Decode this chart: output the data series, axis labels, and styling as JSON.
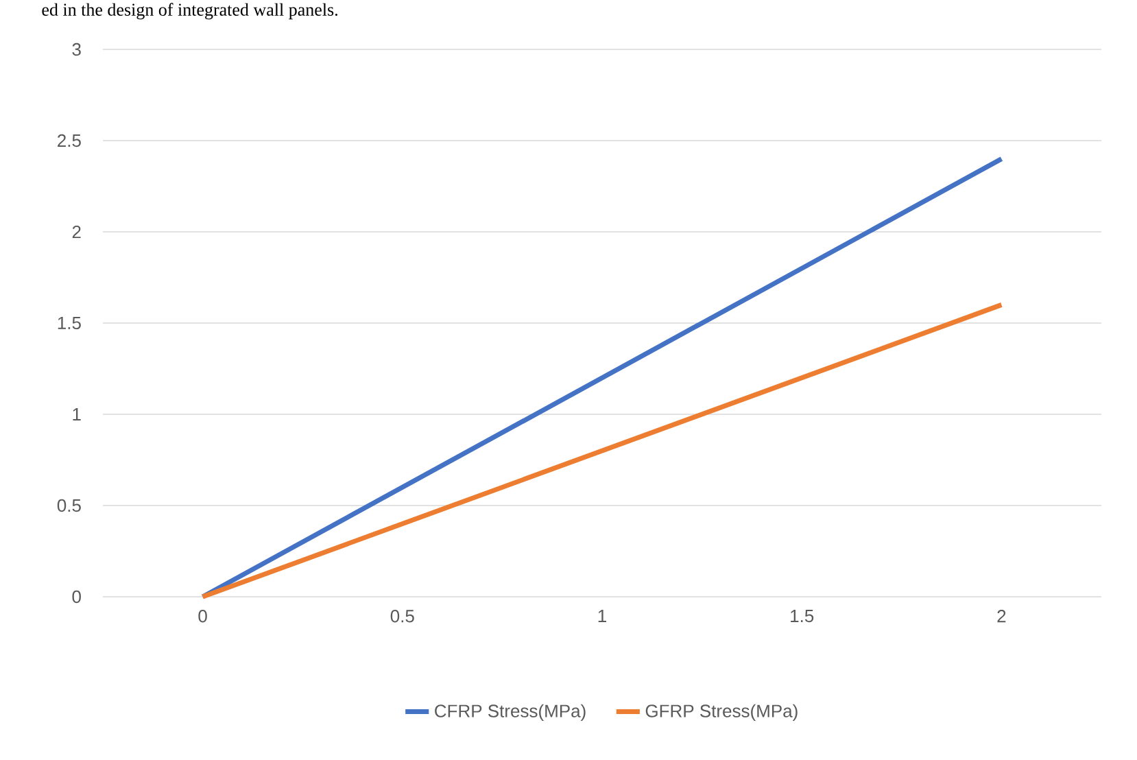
{
  "chart_data": {
    "type": "line",
    "annotations": [
      "ed in the design of integrated wall panels."
    ],
    "x": [
      0,
      2
    ],
    "series": [
      {
        "name": "CFRP Stress(MPa)",
        "color": "#4472c4",
        "values": [
          0,
          2.4
        ]
      },
      {
        "name": "GFRP Stress(MPa)",
        "color": "#ed7d31",
        "values": [
          0,
          1.6
        ]
      }
    ],
    "xlim": [
      -0.25,
      2.25
    ],
    "xticks": [
      0,
      0.5,
      1,
      1.5,
      2
    ],
    "ylim": [
      0,
      3
    ],
    "yticks": [
      0,
      0.5,
      1,
      1.5,
      2,
      2.5,
      3
    ],
    "grid": "y",
    "legend": "bottom",
    "marker": "none",
    "line_style": "solid"
  }
}
